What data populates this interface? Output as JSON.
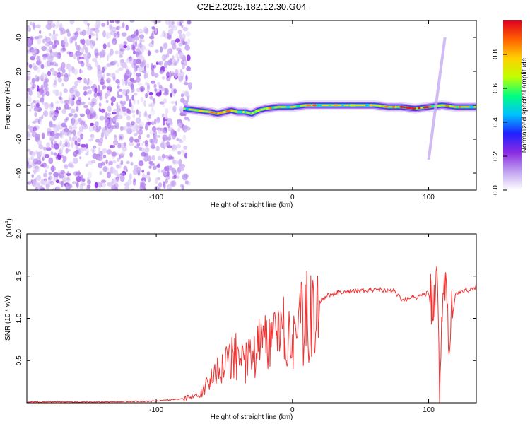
{
  "figure_title": "C2E2.2025.182.12.30.G04",
  "chart_data": [
    {
      "type": "heatmap",
      "title": "C2E2.2025.182.12.30.G04",
      "xlabel": "Height of straight line (km)",
      "ylabel": "Frequency (Hz)",
      "xlim": [
        -195,
        135
      ],
      "ylim": [
        -50,
        50
      ],
      "x_ticks": [
        -100,
        0,
        100
      ],
      "y_ticks": [
        40,
        20,
        0,
        -20,
        -40
      ],
      "colorbar": {
        "label": "Normalized spectral amplitude",
        "range": [
          0,
          1
        ],
        "ticks": [
          0.0,
          0.2,
          0.4,
          0.6,
          0.8
        ],
        "tick_labels": [
          "0.0",
          "0.2",
          "0.4",
          "0.6",
          "0.8"
        ],
        "colors": [
          "#ffffff",
          "#c0a0f0",
          "#8a2be2",
          "#2020ff",
          "#00c0ff",
          "#00ff80",
          "#c0ff00",
          "#ffd000",
          "#ff6000",
          "#e00020"
        ]
      },
      "noise_region_x": [
        -195,
        -75
      ],
      "ridge": [
        [
          -80,
          -2
        ],
        [
          -70,
          -3
        ],
        [
          -60,
          -4
        ],
        [
          -55,
          -5
        ],
        [
          -50,
          -4
        ],
        [
          -45,
          -3
        ],
        [
          -40,
          -4
        ],
        [
          -35,
          -4
        ],
        [
          -30,
          -5
        ],
        [
          -25,
          -3
        ],
        [
          -20,
          -2
        ],
        [
          -10,
          -1
        ],
        [
          0,
          -1
        ],
        [
          10,
          0
        ],
        [
          20,
          0
        ],
        [
          30,
          0
        ],
        [
          40,
          0
        ],
        [
          50,
          0
        ],
        [
          60,
          0
        ],
        [
          70,
          -1
        ],
        [
          80,
          -1
        ],
        [
          90,
          -2
        ],
        [
          100,
          -1
        ],
        [
          110,
          0
        ],
        [
          120,
          -1
        ],
        [
          135,
          -1
        ]
      ],
      "streak": {
        "x": [
          100,
          112
        ],
        "y": [
          -32,
          40
        ]
      }
    },
    {
      "type": "line",
      "xlabel": "Height of straight line (km)",
      "ylabel": "SNR (10 * v/v)",
      "multiplier_label": "(x10",
      "multiplier_exponent": "4",
      "multiplier_close": ")",
      "xlim": [
        -195,
        135
      ],
      "ylim": [
        0,
        2.0
      ],
      "x_ticks": [
        -100,
        0,
        100
      ],
      "y_ticks": [
        2.0,
        1.5,
        1.0,
        0.5
      ],
      "y_tick_labels": [
        "2.0",
        "1.5",
        "1.0",
        "0.5"
      ],
      "series": [
        {
          "color": "#ee3333",
          "x": [
            -195,
            -150,
            -100,
            -80,
            -70,
            -65,
            -60,
            -55,
            -50,
            -45,
            -40,
            -35,
            -30,
            -25,
            -20,
            -15,
            -10,
            -5,
            0,
            5,
            10,
            15,
            20,
            25,
            30,
            40,
            50,
            60,
            70,
            75,
            80,
            85,
            90,
            95,
            100,
            103,
            106,
            108,
            110,
            112,
            115,
            120,
            125,
            135
          ],
          "y": [
            0.01,
            0.01,
            0.02,
            0.05,
            0.08,
            0.15,
            0.3,
            0.35,
            0.45,
            0.5,
            0.55,
            0.5,
            0.6,
            0.65,
            0.7,
            0.65,
            0.8,
            0.85,
            0.7,
            0.9,
            1.0,
            1.1,
            1.2,
            1.27,
            1.3,
            1.32,
            1.33,
            1.34,
            1.33,
            1.32,
            1.22,
            1.23,
            1.25,
            1.28,
            1.3,
            1.2,
            1.5,
            0.2,
            1.1,
            1.4,
            0.8,
            1.3,
            1.33,
            1.36
          ]
        }
      ]
    }
  ]
}
